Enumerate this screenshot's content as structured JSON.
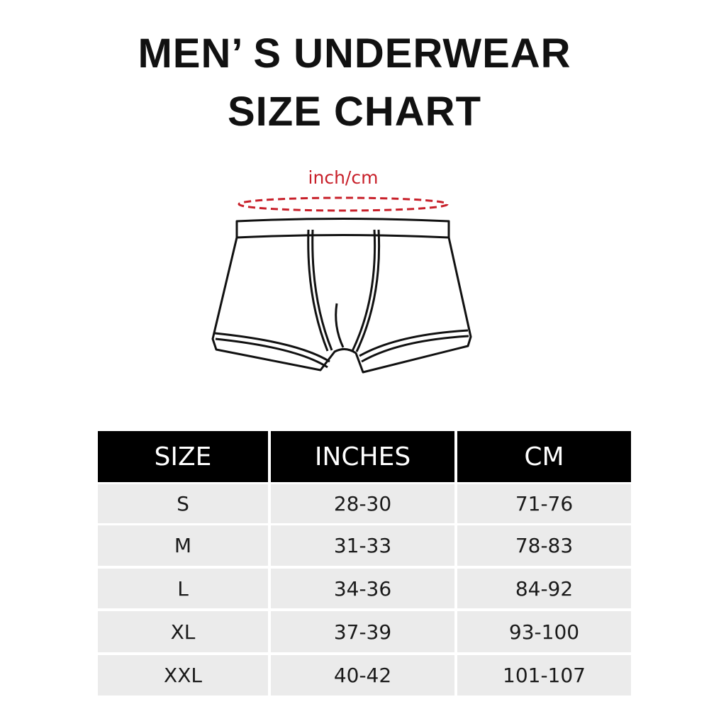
{
  "title_line1": "MEN’ S UNDERWEAR",
  "title_line2": "SIZE CHART",
  "diagram": {
    "measure_label": "inch/cm",
    "measure_color": "#c8202a"
  },
  "table": {
    "headers": [
      "SIZE",
      "INCHES",
      "CM"
    ],
    "rows": [
      [
        "S",
        "28-30",
        "71-76"
      ],
      [
        "M",
        "31-33",
        "78-83"
      ],
      [
        "L",
        "34-36",
        "84-92"
      ],
      [
        "XL",
        "37-39",
        "93-100"
      ],
      [
        "XXL",
        "40-42",
        "101-107"
      ]
    ]
  }
}
